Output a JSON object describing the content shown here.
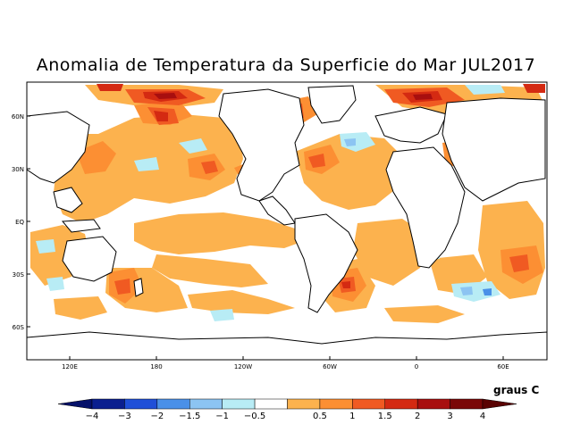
{
  "title": "Anomalia de Temperatura da Superficie do Mar JUL2017",
  "lat_labels": [
    "60N",
    "30N",
    "EQ",
    "30S",
    "60S"
  ],
  "lon_labels": [
    "120E",
    "180",
    "120W",
    "60W",
    "0",
    "60E"
  ],
  "units_label": "graus C",
  "colorbar": {
    "ticks": [
      "−4",
      "−3",
      "−2",
      "−1.5",
      "−1",
      "−0.5",
      "0.5",
      "1",
      "1.5",
      "2",
      "3",
      "4"
    ],
    "colors": [
      "#0a1f8f",
      "#1f4fd8",
      "#4a90e8",
      "#8cc4f2",
      "#b8ecf5",
      "#ffffff",
      "#fcb24e",
      "#fc8f33",
      "#f05a22",
      "#d42a12",
      "#a80f0f",
      "#7a0808"
    ],
    "low_arrow_color": "#05116a",
    "high_arrow_color": "#5a0303"
  },
  "palette": {
    "land": "#ffffff",
    "coast": "#000000",
    "light_orange": "#fcb24e",
    "orange": "#fc8f33",
    "dark_orange": "#f05a22",
    "red": "#d42a12",
    "dark_red": "#a80f0f",
    "light_blue": "#b8ecf5",
    "mid_blue": "#8cc4f2",
    "blue": "#4a90e8"
  }
}
